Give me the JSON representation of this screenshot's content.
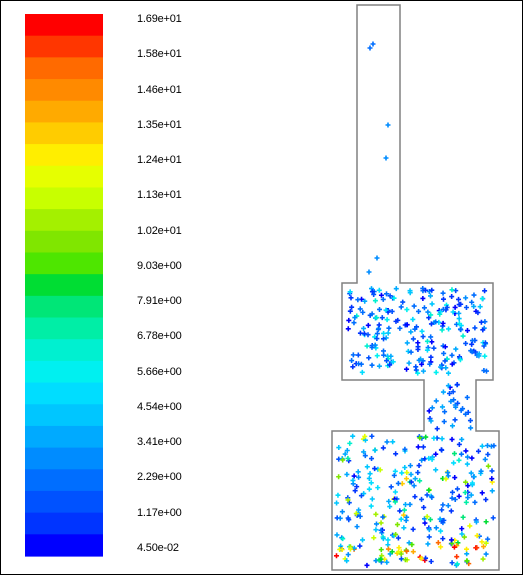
{
  "chart_data": {
    "type": "scatter",
    "title": "",
    "colorbar": {
      "ticks": [
        "1.69e+01",
        "1.58e+01",
        "1.46e+01",
        "1.35e+01",
        "1.24e+01",
        "1.13e+01",
        "1.02e+01",
        "9.03e+00",
        "7.91e+00",
        "6.78e+00",
        "5.66e+00",
        "4.54e+00",
        "3.41e+00",
        "2.29e+00",
        "1.17e+00",
        "4.50e-02"
      ],
      "min": 0.045,
      "max": 16.9,
      "colors": [
        "#ff0000",
        "#ff3600",
        "#ff6a00",
        "#ff8a00",
        "#ffaa00",
        "#ffcc00",
        "#ffee00",
        "#e6ff00",
        "#c8ff00",
        "#a4f000",
        "#80e600",
        "#4ee600",
        "#00dd33",
        "#00e677",
        "#00eea6",
        "#00f0d0",
        "#00f0f0",
        "#00ddff",
        "#00c6ff",
        "#00aaff",
        "#008cff",
        "#006eff",
        "#0052ff",
        "#0034ff",
        "#0000ff"
      ]
    },
    "geometry": {
      "description": "",
      "shape": "stepped-channel"
    },
    "particles_summary": {
      "upper_channel": "sparse, low values (~1-3)",
      "upper_chamber": "dense, values ~0-6",
      "lower_chamber": "dense, values ~0-16, high values near bottom"
    }
  }
}
